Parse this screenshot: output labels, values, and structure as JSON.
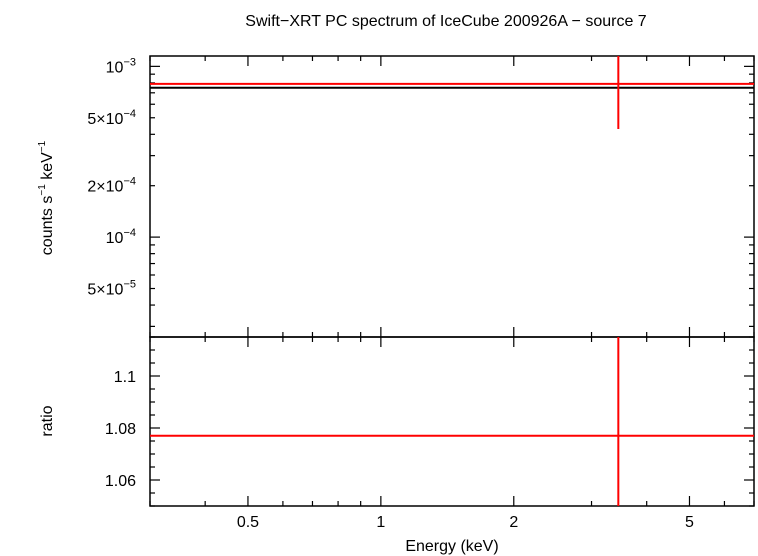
{
  "chart_data": {
    "title": "Swift−XRT PC spectrum of IceCube 200926A − source 7",
    "type": "line",
    "xlabel": "Energy (keV)",
    "x_scale": "log",
    "xlim": [
      0.3,
      7.0
    ],
    "x_ticks": [
      {
        "value": 0.5,
        "label": "0.5"
      },
      {
        "value": 1,
        "label": "1"
      },
      {
        "value": 2,
        "label": "2"
      },
      {
        "value": 5,
        "label": "5"
      }
    ],
    "panels": [
      {
        "name": "spectrum",
        "ylabel_main": "counts s",
        "ylabel_sup1": "−1",
        "ylabel_mid": " keV",
        "ylabel_sup2": "−1",
        "y_scale": "log",
        "ylim": [
          2.6e-05,
          0.00115
        ],
        "y_ticks": [
          {
            "value": 0.001,
            "base": "10",
            "exp": "−3"
          },
          {
            "value": 0.0005,
            "base": "5×10",
            "exp": "−4"
          },
          {
            "value": 0.0002,
            "base": "2×10",
            "exp": "−4"
          },
          {
            "value": 0.0001,
            "base": "10",
            "exp": "−4"
          },
          {
            "value": 5e-05,
            "base": "5×10",
            "exp": "−5"
          }
        ],
        "model": {
          "color": "#000000",
          "x": [
            0.3,
            7.0
          ],
          "y": [
            0.00075,
            0.00075
          ]
        },
        "data": [
          {
            "color": "#ff0000",
            "x": 3.45,
            "xerr": [
              0.3,
              7.0
            ],
            "y": 0.00079,
            "yerr": [
              0.00043,
              0.00115
            ]
          }
        ]
      },
      {
        "name": "ratio",
        "ylabel": "ratio",
        "y_scale": "linear",
        "ylim": [
          1.05,
          1.115
        ],
        "y_ticks": [
          {
            "value": 1.06,
            "label": "1.06"
          },
          {
            "value": 1.08,
            "label": "1.08"
          },
          {
            "value": 1.1,
            "label": "1.1"
          }
        ],
        "data": [
          {
            "color": "#ff0000",
            "x": 3.45,
            "xerr": [
              0.3,
              7.0
            ],
            "y": 1.077,
            "yerr": [
              1.05,
              1.115
            ]
          }
        ]
      }
    ]
  }
}
